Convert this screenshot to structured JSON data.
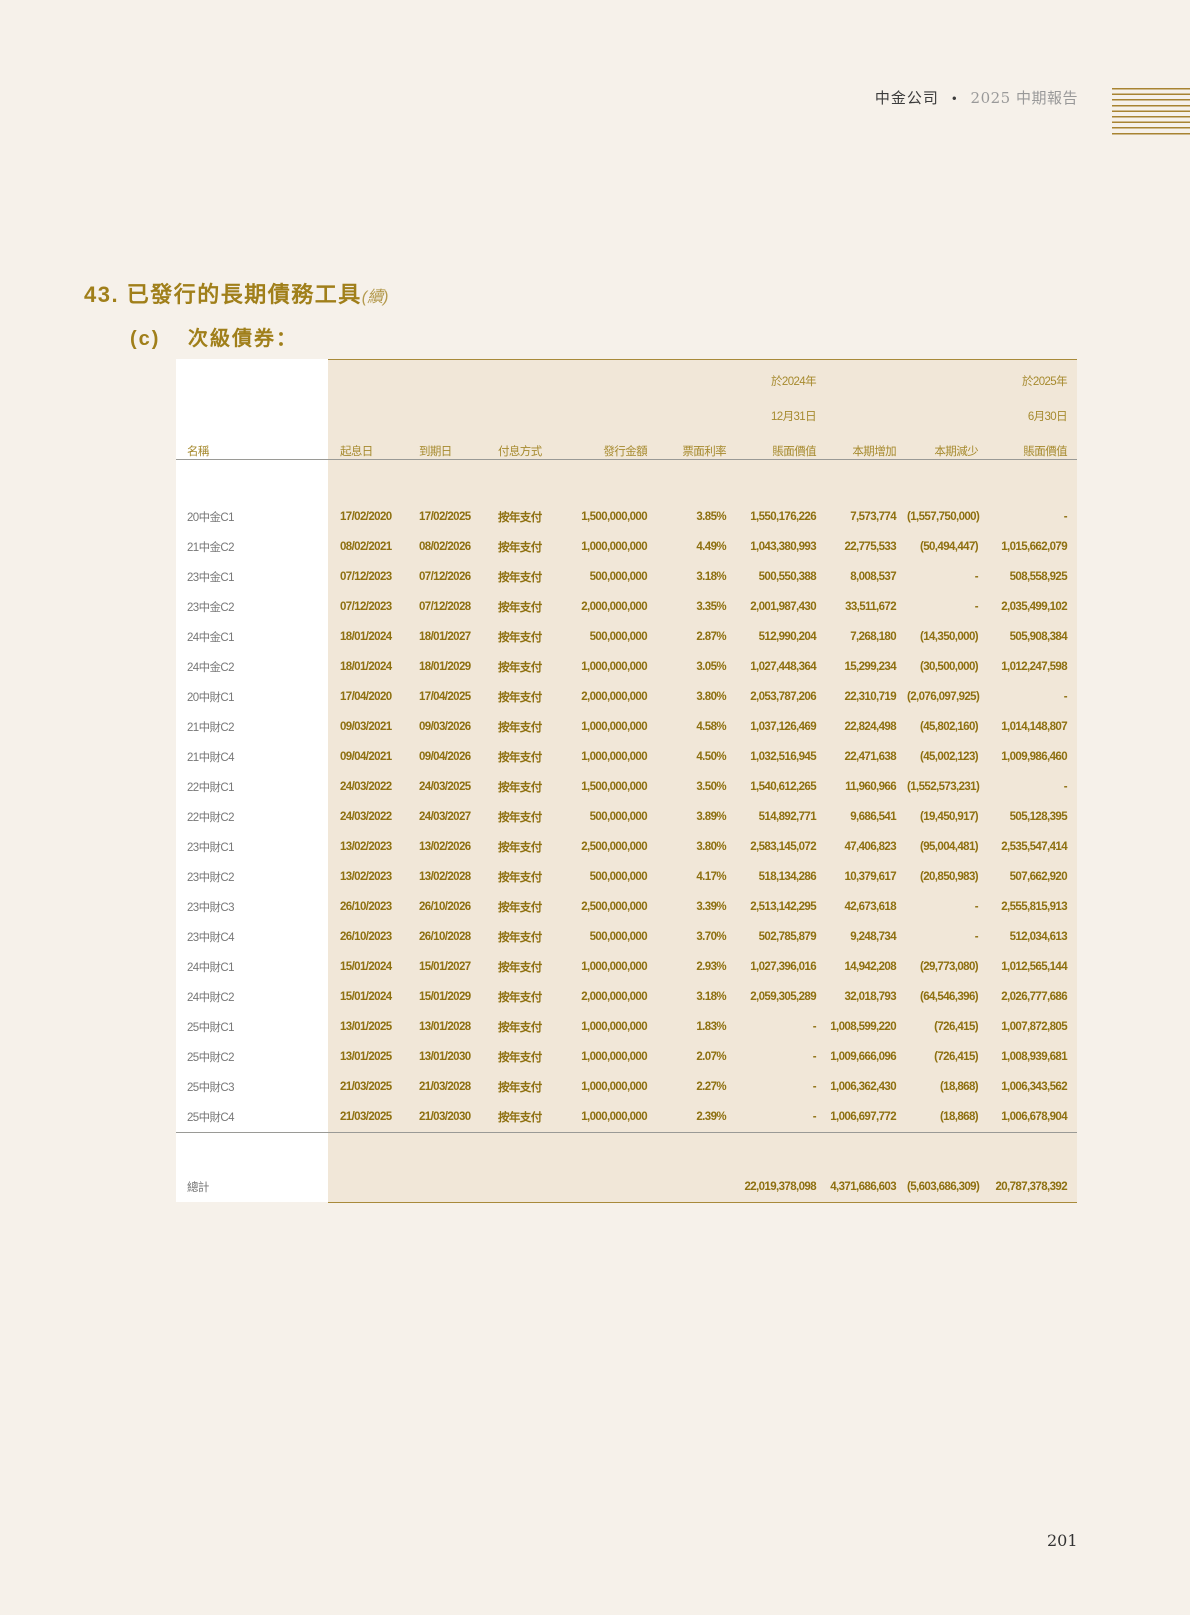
{
  "header": {
    "company": "中金公司",
    "separator": "•",
    "report": "2025 中期報告"
  },
  "section": {
    "number": "43.",
    "title": "已發行的長期債務工具",
    "continued": "(續)"
  },
  "subsection": {
    "label": "(c)",
    "title": "次級債券："
  },
  "table": {
    "headers": {
      "name": "名稱",
      "start": "起息日",
      "maturity": "到期日",
      "payment": "付息方式",
      "amount": "發行金額",
      "rate": "票面利率",
      "v2024_l1": "於2024年",
      "v2024_l2": "12月31日",
      "v2024_l3": "賬面價值",
      "increase": "本期增加",
      "decrease": "本期減少",
      "v2025_l1": "於2025年",
      "v2025_l2": "6月30日",
      "v2025_l3": "賬面價值"
    },
    "rows": [
      [
        "20中金C1",
        "17/02/2020",
        "17/02/2025",
        "按年支付",
        "1,500,000,000",
        "3.85%",
        "1,550,176,226",
        "7,573,774",
        "(1,557,750,000)",
        "-"
      ],
      [
        "21中金C2",
        "08/02/2021",
        "08/02/2026",
        "按年支付",
        "1,000,000,000",
        "4.49%",
        "1,043,380,993",
        "22,775,533",
        "(50,494,447)",
        "1,015,662,079"
      ],
      [
        "23中金C1",
        "07/12/2023",
        "07/12/2026",
        "按年支付",
        "500,000,000",
        "3.18%",
        "500,550,388",
        "8,008,537",
        "-",
        "508,558,925"
      ],
      [
        "23中金C2",
        "07/12/2023",
        "07/12/2028",
        "按年支付",
        "2,000,000,000",
        "3.35%",
        "2,001,987,430",
        "33,511,672",
        "-",
        "2,035,499,102"
      ],
      [
        "24中金C1",
        "18/01/2024",
        "18/01/2027",
        "按年支付",
        "500,000,000",
        "2.87%",
        "512,990,204",
        "7,268,180",
        "(14,350,000)",
        "505,908,384"
      ],
      [
        "24中金C2",
        "18/01/2024",
        "18/01/2029",
        "按年支付",
        "1,000,000,000",
        "3.05%",
        "1,027,448,364",
        "15,299,234",
        "(30,500,000)",
        "1,012,247,598"
      ],
      [
        "20中財C1",
        "17/04/2020",
        "17/04/2025",
        "按年支付",
        "2,000,000,000",
        "3.80%",
        "2,053,787,206",
        "22,310,719",
        "(2,076,097,925)",
        "-"
      ],
      [
        "21中財C2",
        "09/03/2021",
        "09/03/2026",
        "按年支付",
        "1,000,000,000",
        "4.58%",
        "1,037,126,469",
        "22,824,498",
        "(45,802,160)",
        "1,014,148,807"
      ],
      [
        "21中財C4",
        "09/04/2021",
        "09/04/2026",
        "按年支付",
        "1,000,000,000",
        "4.50%",
        "1,032,516,945",
        "22,471,638",
        "(45,002,123)",
        "1,009,986,460"
      ],
      [
        "22中財C1",
        "24/03/2022",
        "24/03/2025",
        "按年支付",
        "1,500,000,000",
        "3.50%",
        "1,540,612,265",
        "11,960,966",
        "(1,552,573,231)",
        "-"
      ],
      [
        "22中財C2",
        "24/03/2022",
        "24/03/2027",
        "按年支付",
        "500,000,000",
        "3.89%",
        "514,892,771",
        "9,686,541",
        "(19,450,917)",
        "505,128,395"
      ],
      [
        "23中財C1",
        "13/02/2023",
        "13/02/2026",
        "按年支付",
        "2,500,000,000",
        "3.80%",
        "2,583,145,072",
        "47,406,823",
        "(95,004,481)",
        "2,535,547,414"
      ],
      [
        "23中財C2",
        "13/02/2023",
        "13/02/2028",
        "按年支付",
        "500,000,000",
        "4.17%",
        "518,134,286",
        "10,379,617",
        "(20,850,983)",
        "507,662,920"
      ],
      [
        "23中財C3",
        "26/10/2023",
        "26/10/2026",
        "按年支付",
        "2,500,000,000",
        "3.39%",
        "2,513,142,295",
        "42,673,618",
        "-",
        "2,555,815,913"
      ],
      [
        "23中財C4",
        "26/10/2023",
        "26/10/2028",
        "按年支付",
        "500,000,000",
        "3.70%",
        "502,785,879",
        "9,248,734",
        "-",
        "512,034,613"
      ],
      [
        "24中財C1",
        "15/01/2024",
        "15/01/2027",
        "按年支付",
        "1,000,000,000",
        "2.93%",
        "1,027,396,016",
        "14,942,208",
        "(29,773,080)",
        "1,012,565,144"
      ],
      [
        "24中財C2",
        "15/01/2024",
        "15/01/2029",
        "按年支付",
        "2,000,000,000",
        "3.18%",
        "2,059,305,289",
        "32,018,793",
        "(64,546,396)",
        "2,026,777,686"
      ],
      [
        "25中財C1",
        "13/01/2025",
        "13/01/2028",
        "按年支付",
        "1,000,000,000",
        "1.83%",
        "-",
        "1,008,599,220",
        "(726,415)",
        "1,007,872,805"
      ],
      [
        "25中財C2",
        "13/01/2025",
        "13/01/2030",
        "按年支付",
        "1,000,000,000",
        "2.07%",
        "-",
        "1,009,666,096",
        "(726,415)",
        "1,008,939,681"
      ],
      [
        "25中財C3",
        "21/03/2025",
        "21/03/2028",
        "按年支付",
        "1,000,000,000",
        "2.27%",
        "-",
        "1,006,362,430",
        "(18,868)",
        "1,006,343,562"
      ],
      [
        "25中財C4",
        "21/03/2025",
        "21/03/2030",
        "按年支付",
        "1,000,000,000",
        "2.39%",
        "-",
        "1,006,697,772",
        "(18,868)",
        "1,006,678,904"
      ]
    ],
    "total": {
      "label": "總計",
      "v2024": "22,019,378,098",
      "increase": "4,371,686,603",
      "decrease": "(5,603,686,309)",
      "v2025": "20,787,378,392"
    }
  },
  "page_number": "201",
  "colors": {
    "accent": "#a07f1a",
    "table_shade": "#f1e7d8",
    "background": "#f6f1ea"
  }
}
